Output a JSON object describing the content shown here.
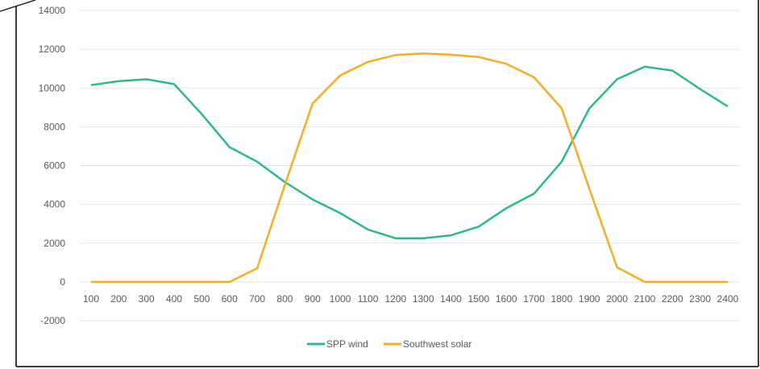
{
  "chart_data": {
    "type": "line",
    "title": "",
    "xlabel": "",
    "ylabel": "",
    "ylim": [
      -2000,
      14000
    ],
    "y_ticks": [
      "14000",
      "12000",
      "10000",
      "8000",
      "6000",
      "4000",
      "2000",
      "0",
      "-2000"
    ],
    "categories": [
      "100",
      "200",
      "300",
      "400",
      "500",
      "600",
      "700",
      "800",
      "900",
      "1000",
      "1100",
      "1200",
      "1300",
      "1400",
      "1500",
      "1600",
      "1700",
      "1800",
      "1900",
      "2000",
      "2100",
      "2200",
      "2300",
      "2400"
    ],
    "grid": true,
    "legend_position": "bottom",
    "series": [
      {
        "name": "SPP wind",
        "color": "#2db88e",
        "values": [
          10150,
          10350,
          10450,
          10200,
          8650,
          6950,
          6200,
          5150,
          4250,
          3550,
          2700,
          2250,
          2250,
          2400,
          2850,
          3800,
          4550,
          6200,
          8950,
          10450,
          11100,
          10900,
          9950,
          9050
        ]
      },
      {
        "name": "Southwest solar",
        "color": "#f6ad22",
        "values": [
          0,
          0,
          0,
          0,
          0,
          0,
          700,
          5000,
          9200,
          10650,
          11350,
          11700,
          11780,
          11720,
          11600,
          11250,
          10550,
          8950,
          4800,
          750,
          0,
          0,
          0,
          0
        ]
      }
    ]
  }
}
